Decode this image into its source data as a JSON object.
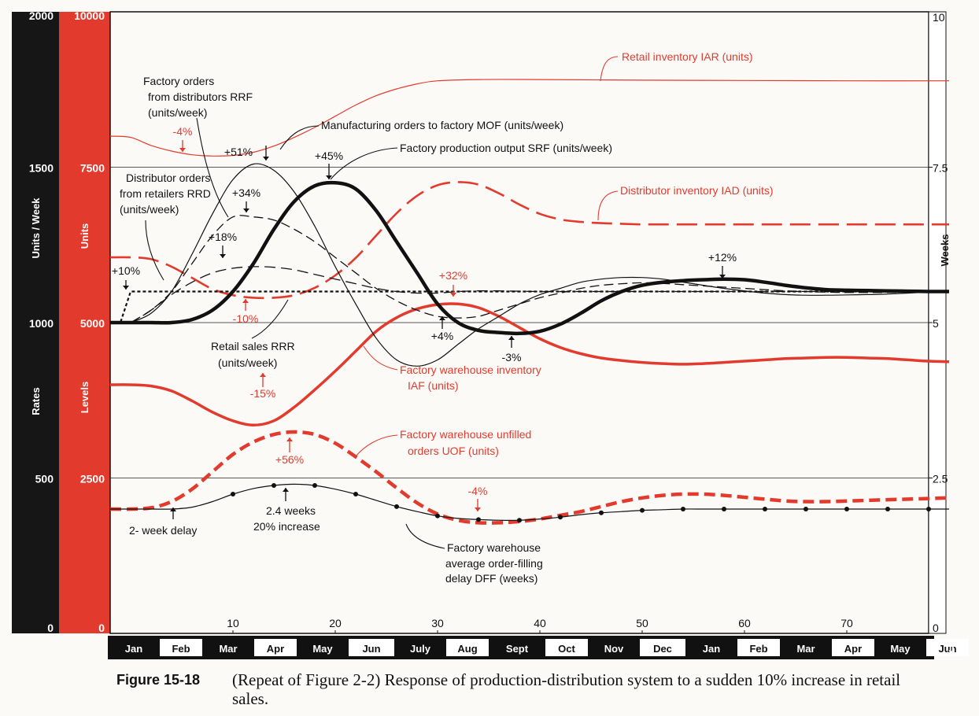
{
  "chart_data": {
    "type": "line",
    "title": "",
    "x_range": [
      -2,
      80
    ],
    "x_ticks": [
      10,
      20,
      30,
      40,
      50,
      60,
      70
    ],
    "months": [
      "Jan",
      "Feb",
      "Mar",
      "Apr",
      "May",
      "Jun",
      "July",
      "Aug",
      "Sept",
      "Oct",
      "Nov",
      "Dec",
      "Jan",
      "Feb",
      "Mar",
      "Apr",
      "May",
      "Jun",
      "J"
    ],
    "axes": {
      "rates": {
        "label": "Rates",
        "title": "Units / Week",
        "ticks": [
          "2000",
          "1500",
          "1000",
          "500",
          "0"
        ]
      },
      "levels": {
        "label": "Levels",
        "title": "Units",
        "ticks": [
          "10000",
          "7500",
          "5000",
          "2500",
          "0"
        ]
      },
      "weeks": {
        "label": "Weeks",
        "ticks": [
          "10",
          "7.5",
          "5",
          "2.5",
          "0"
        ]
      }
    },
    "series": [
      {
        "name": "Retail inventory IAR (units)",
        "axis": "levels",
        "color": "#e23b2e",
        "style": "thin",
        "x": [
          -2,
          0,
          2,
          4,
          6,
          8,
          10,
          12,
          14,
          16,
          18,
          20,
          22,
          24,
          26,
          28,
          30,
          34,
          40,
          50,
          60,
          70,
          80
        ],
        "y": [
          8000,
          7980,
          7850,
          7760,
          7700,
          7680,
          7690,
          7740,
          7840,
          7980,
          8140,
          8320,
          8500,
          8650,
          8760,
          8840,
          8890,
          8910,
          8910,
          8900,
          8895,
          8890,
          8890
        ]
      },
      {
        "name": "Distributor inventory IAD (units)",
        "axis": "levels",
        "color": "#e23b2e",
        "style": "dashed",
        "x": [
          -2,
          0,
          2,
          4,
          6,
          8,
          10,
          12,
          14,
          16,
          18,
          20,
          22,
          24,
          26,
          28,
          30,
          32,
          34,
          36,
          38,
          40,
          42,
          44,
          46,
          48,
          50,
          55,
          60,
          70,
          80
        ],
        "y": [
          6050,
          6050,
          6020,
          5900,
          5720,
          5540,
          5440,
          5400,
          5400,
          5440,
          5560,
          5760,
          6040,
          6400,
          6760,
          7040,
          7210,
          7260,
          7220,
          7080,
          6900,
          6750,
          6660,
          6620,
          6600,
          6590,
          6580,
          6580,
          6580,
          6580,
          6580
        ]
      },
      {
        "name": "Factory warehouse inventory IAF (units)",
        "axis": "levels",
        "color": "#e23b2e",
        "style": "thick",
        "x": [
          -2,
          0,
          2,
          4,
          6,
          8,
          10,
          12,
          14,
          16,
          18,
          20,
          22,
          24,
          26,
          28,
          30,
          32,
          34,
          36,
          38,
          40,
          42,
          44,
          46,
          48,
          50,
          52,
          54,
          56,
          58,
          60,
          62,
          64,
          66,
          68,
          70,
          72,
          74,
          76,
          78,
          80
        ],
        "y": [
          4000,
          4000,
          3980,
          3900,
          3740,
          3560,
          3420,
          3350,
          3420,
          3640,
          3920,
          4220,
          4540,
          4860,
          5080,
          5220,
          5290,
          5300,
          5240,
          5100,
          4920,
          4740,
          4600,
          4500,
          4430,
          4390,
          4360,
          4340,
          4330,
          4340,
          4360,
          4380,
          4400,
          4420,
          4430,
          4440,
          4440,
          4430,
          4420,
          4400,
          4380,
          4370
        ]
      },
      {
        "name": "Factory warehouse unfilled orders UOF (units)",
        "axis": "levels",
        "color": "#e23b2e",
        "style": "thick-dashed",
        "x": [
          -2,
          0,
          2,
          4,
          6,
          8,
          10,
          12,
          14,
          16,
          18,
          20,
          22,
          24,
          26,
          28,
          30,
          32,
          34,
          36,
          38,
          40,
          42,
          44,
          46,
          48,
          50,
          52,
          54,
          56,
          58,
          60,
          62,
          64,
          66,
          68,
          70,
          72,
          74,
          76,
          78,
          80
        ],
        "y": [
          2000,
          2000,
          2020,
          2120,
          2320,
          2600,
          2880,
          3080,
          3200,
          3240,
          3200,
          3060,
          2840,
          2600,
          2340,
          2100,
          1920,
          1820,
          1780,
          1780,
          1800,
          1840,
          1900,
          1960,
          2040,
          2120,
          2180,
          2220,
          2240,
          2240,
          2220,
          2190,
          2160,
          2130,
          2120,
          2120,
          2130,
          2140,
          2150,
          2160,
          2170,
          2180
        ]
      },
      {
        "name": "Retail sales RRR (units/week)",
        "axis": "rates",
        "color": "#111",
        "style": "dotted",
        "x": [
          -2,
          -1,
          0,
          80
        ],
        "y": [
          1000,
          1000,
          1100,
          1100
        ]
      },
      {
        "name": "Distributor orders from retailers RRD (units/week)",
        "axis": "rates",
        "color": "#111",
        "style": "long-dashed",
        "x": [
          0,
          2,
          4,
          6,
          8,
          10,
          12,
          14,
          16,
          18,
          20,
          22,
          24,
          26,
          28,
          30,
          32,
          34,
          36,
          38,
          40,
          45,
          50,
          55,
          60,
          70,
          78
        ],
        "y": [
          1000,
          1040,
          1090,
          1130,
          1160,
          1175,
          1180,
          1178,
          1170,
          1155,
          1140,
          1125,
          1110,
          1100,
          1095,
          1095,
          1100,
          1102,
          1102,
          1101,
          1100,
          1100,
          1100,
          1100,
          1100,
          1100,
          1100
        ]
      },
      {
        "name": "Factory orders from distributors RRF (units/week)",
        "axis": "rates",
        "color": "#111",
        "style": "dashed",
        "x": [
          0,
          2,
          4,
          6,
          8,
          10,
          12,
          14,
          16,
          18,
          20,
          22,
          24,
          26,
          28,
          30,
          32,
          34,
          36,
          38,
          40,
          42,
          44,
          46,
          48,
          50,
          52,
          54,
          56,
          58,
          60,
          62,
          64,
          66,
          68,
          70,
          72,
          74,
          76,
          78
        ],
        "y": [
          1000,
          1040,
          1100,
          1190,
          1280,
          1340,
          1340,
          1330,
          1300,
          1260,
          1210,
          1160,
          1110,
          1070,
          1040,
          1020,
          1015,
          1020,
          1040,
          1060,
          1080,
          1095,
          1110,
          1120,
          1125,
          1128,
          1126,
          1122,
          1118,
          1114,
          1110,
          1106,
          1102,
          1100,
          1098,
          1097,
          1097,
          1097,
          1098,
          1100
        ]
      },
      {
        "name": "Manufacturing orders to factory MOF (units/week)",
        "axis": "rates",
        "color": "#111",
        "style": "thin",
        "x": [
          0,
          2,
          4,
          6,
          8,
          10,
          12,
          14,
          16,
          18,
          20,
          22,
          24,
          26,
          28,
          30,
          32,
          34,
          36,
          38,
          40,
          42,
          44,
          46,
          48,
          50,
          52,
          54,
          56,
          58,
          60,
          62,
          64,
          66,
          68,
          70,
          72,
          74,
          76,
          78
        ],
        "y": [
          1000,
          1030,
          1100,
          1220,
          1350,
          1460,
          1510,
          1490,
          1420,
          1310,
          1180,
          1060,
          950,
          880,
          860,
          880,
          930,
          980,
          1020,
          1060,
          1090,
          1110,
          1130,
          1140,
          1145,
          1145,
          1140,
          1130,
          1120,
          1110,
          1102,
          1095,
          1090,
          1088,
          1088,
          1089,
          1090,
          1092,
          1095,
          1098
        ]
      },
      {
        "name": "Factory production output SRF (units/week)",
        "axis": "rates",
        "color": "#111",
        "style": "very-thick",
        "x": [
          -2,
          0,
          2,
          4,
          6,
          8,
          10,
          12,
          14,
          16,
          18,
          20,
          22,
          24,
          26,
          28,
          30,
          32,
          34,
          36,
          38,
          40,
          42,
          44,
          46,
          48,
          50,
          52,
          54,
          56,
          58,
          60,
          62,
          64,
          66,
          68,
          70,
          72,
          74,
          76,
          78,
          80
        ],
        "y": [
          1000,
          1000,
          1000,
          1000,
          1010,
          1040,
          1100,
          1190,
          1300,
          1390,
          1440,
          1450,
          1430,
          1360,
          1260,
          1160,
          1060,
          1000,
          975,
          968,
          965,
          972,
          995,
          1030,
          1070,
          1100,
          1120,
          1130,
          1135,
          1138,
          1140,
          1138,
          1130,
          1120,
          1112,
          1106,
          1104,
          1103,
          1102,
          1101,
          1100,
          1100
        ]
      },
      {
        "name": "Factory warehouse average order-filling delay DFF (weeks)",
        "axis": "weeks",
        "color": "#111",
        "style": "dot-markers",
        "x": [
          -2,
          0,
          2,
          4,
          6,
          8,
          10,
          12,
          14,
          16,
          18,
          20,
          22,
          24,
          26,
          28,
          30,
          32,
          34,
          36,
          38,
          40,
          42,
          44,
          46,
          48,
          50,
          52,
          54,
          56,
          58,
          60,
          62,
          64,
          66,
          68,
          70,
          72,
          74,
          76,
          78,
          80
        ],
        "y": [
          2.0,
          2.0,
          2.0,
          2.0,
          2.03,
          2.12,
          2.24,
          2.33,
          2.38,
          2.4,
          2.38,
          2.32,
          2.24,
          2.14,
          2.04,
          1.96,
          1.89,
          1.85,
          1.83,
          1.82,
          1.82,
          1.84,
          1.87,
          1.91,
          1.94,
          1.96,
          1.98,
          1.99,
          2.0,
          2.0,
          2.0,
          2.0,
          2.0,
          2.0,
          2.0,
          2.0,
          2.0,
          2.0,
          2.0,
          2.0,
          2.0,
          2.0
        ]
      }
    ],
    "annotations": [
      {
        "text": "-4%",
        "color": "red"
      },
      {
        "text": "+51%",
        "color": "black"
      },
      {
        "text": "+45%",
        "color": "black"
      },
      {
        "text": "+34%",
        "color": "black"
      },
      {
        "text": "+18%",
        "color": "black"
      },
      {
        "text": "+10%",
        "color": "black"
      },
      {
        "text": "-10%",
        "color": "red"
      },
      {
        "text": "+32%",
        "color": "red"
      },
      {
        "text": "+4%",
        "color": "black"
      },
      {
        "text": "-3%",
        "color": "black"
      },
      {
        "text": "+12%",
        "color": "black"
      },
      {
        "text": "-15%",
        "color": "red"
      },
      {
        "text": "+56%",
        "color": "red"
      },
      {
        "text": "-4%",
        "color": "red"
      }
    ],
    "labels": {
      "iar": "Retail inventory IAR  (units)",
      "rrf1": "Factory orders",
      "rrf2": "from distributors RRF",
      "rrf3": "(units/week)",
      "mof": "Manufacturing orders to factory MOF   (units/week)",
      "srf": "Factory production output SRF   (units/week)",
      "rrd1": "Distributor orders",
      "rrd2": "from retailers RRD",
      "rrd3": "(units/week)",
      "iad": "Distributor inventory IAD   (units)",
      "rrr1": "Retail sales RRR",
      "rrr2": "(units/week)",
      "iaf1": "Factory warehouse inventory",
      "iaf2": "IAF   (units)",
      "uof1": "Factory warehouse unfilled",
      "uof2": "orders UOF   (units)",
      "delay": "2- week delay",
      "wk1": "2.4 weeks",
      "wk2": "20% increase",
      "dff1": "Factory warehouse",
      "dff2": "average order-filling",
      "dff3": "delay DFF (weeks)"
    }
  },
  "caption": {
    "label": "Figure 15-18",
    "text": "(Repeat of Figure 2-2) Response of production-distribution system to a sudden 10% increase in retail sales."
  }
}
